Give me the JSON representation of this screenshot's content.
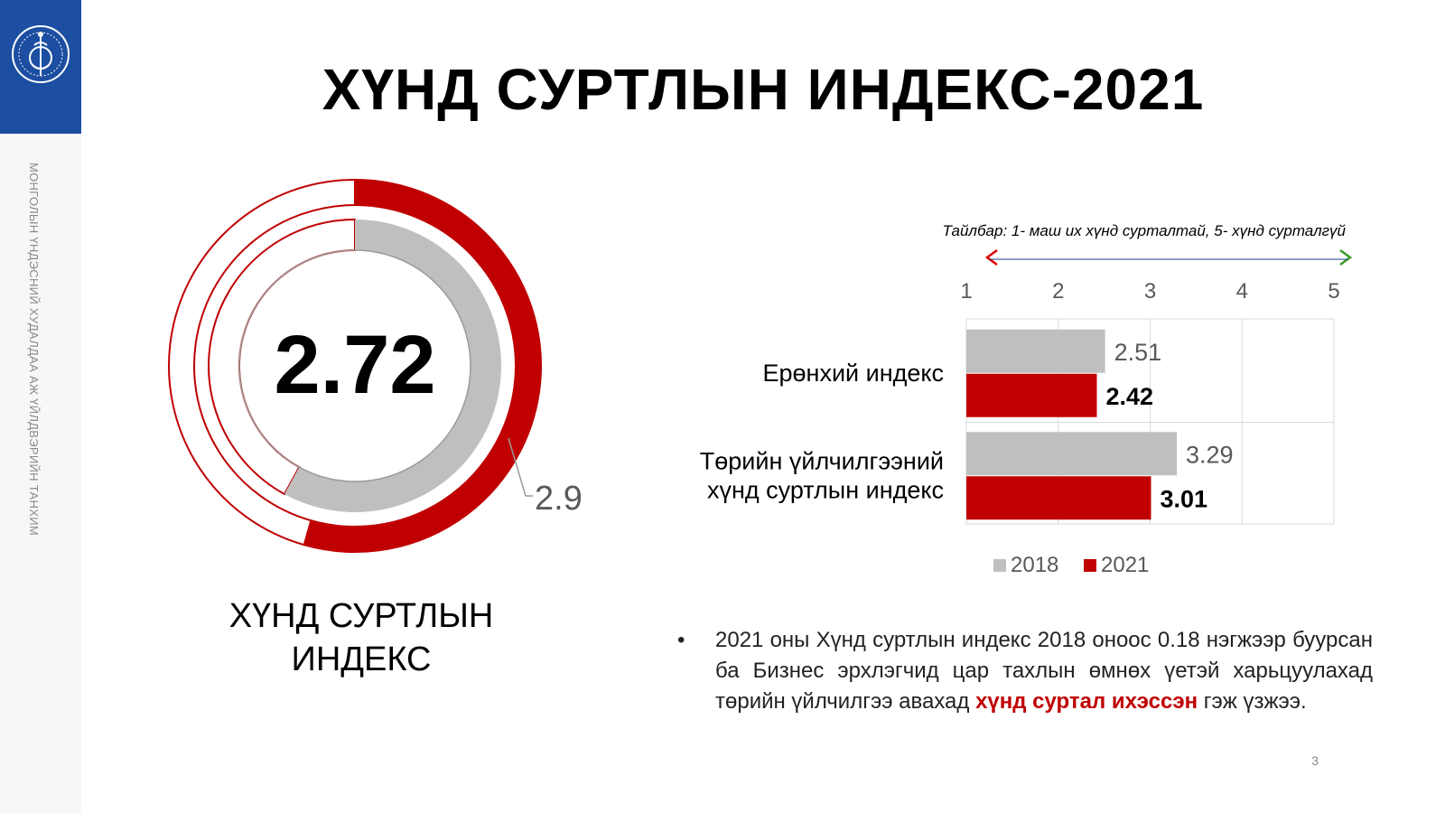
{
  "slide": {
    "title": "ХҮНД СУРТЛЫН ИНДЕКС-2021",
    "side_text": "МОНГОЛЫН ҮНДЭСНИЙ ХУДАЛДАА АЖ ҮЙЛДВЭРИЙН ТАНХИМ",
    "page_number": "3",
    "logo_icon": "chamber-emblem-icon",
    "colors": {
      "primary_red": "#c00000",
      "gray": "#bfbfbf",
      "logo_blue": "#1c4ea2"
    }
  },
  "donut": {
    "value_2021": "2.72",
    "value_2018": "2.9",
    "caption_line1": "ХҮНД СУРТЛЫН",
    "caption_line2": "ИНДЕКС"
  },
  "scale": {
    "note": "Тайлбар: 1- маш их хүнд сурталтай, 5- хүнд сурталгүй",
    "arrow_icon": "gradient-double-arrow-icon"
  },
  "bullet": {
    "text_before": "2021 оны Хүнд суртлын индекс 2018 оноос 0.18 нэгжээр буурсан ба Бизнес эрхлэгчид цар тахлын өмнөх үетэй харьцуулахад төрийн үйлчилгээ авахад ",
    "text_highlight": "хүнд суртал ихэссэн",
    "text_after": " гэж үзжээ."
  },
  "chart_data": [
    {
      "type": "pie",
      "title": "ХҮНД СУРТЛЫН ИНДЕКС",
      "series": [
        {
          "name": "2021",
          "value": 2.72,
          "max": 5,
          "color": "#c00000"
        },
        {
          "name": "2018",
          "value": 2.9,
          "max": 5,
          "color": "#bfbfbf"
        }
      ],
      "labels": [
        "2.72",
        "2.9"
      ]
    },
    {
      "type": "bar",
      "orientation": "horizontal",
      "categories": [
        "Ерөнхий индекс",
        "Төрийн үйлчилгээний хүнд суртлын индекс"
      ],
      "category_lines": [
        [
          "Ерөнхий индекс"
        ],
        [
          "Төрийн үйлчилгээний",
          "хүнд суртлын индекс"
        ]
      ],
      "series": [
        {
          "name": "2018",
          "values": [
            2.51,
            3.29
          ],
          "labels": [
            "2.51",
            "3.29"
          ],
          "color": "#bfbfbf"
        },
        {
          "name": "2021",
          "values": [
            2.42,
            3.01
          ],
          "labels": [
            "2.42",
            "3.01"
          ],
          "color": "#c00000"
        }
      ],
      "xlim": [
        1,
        5
      ],
      "xticks": [
        "1",
        "2",
        "3",
        "4",
        "5"
      ],
      "grid": true,
      "legend": "bottom"
    }
  ]
}
